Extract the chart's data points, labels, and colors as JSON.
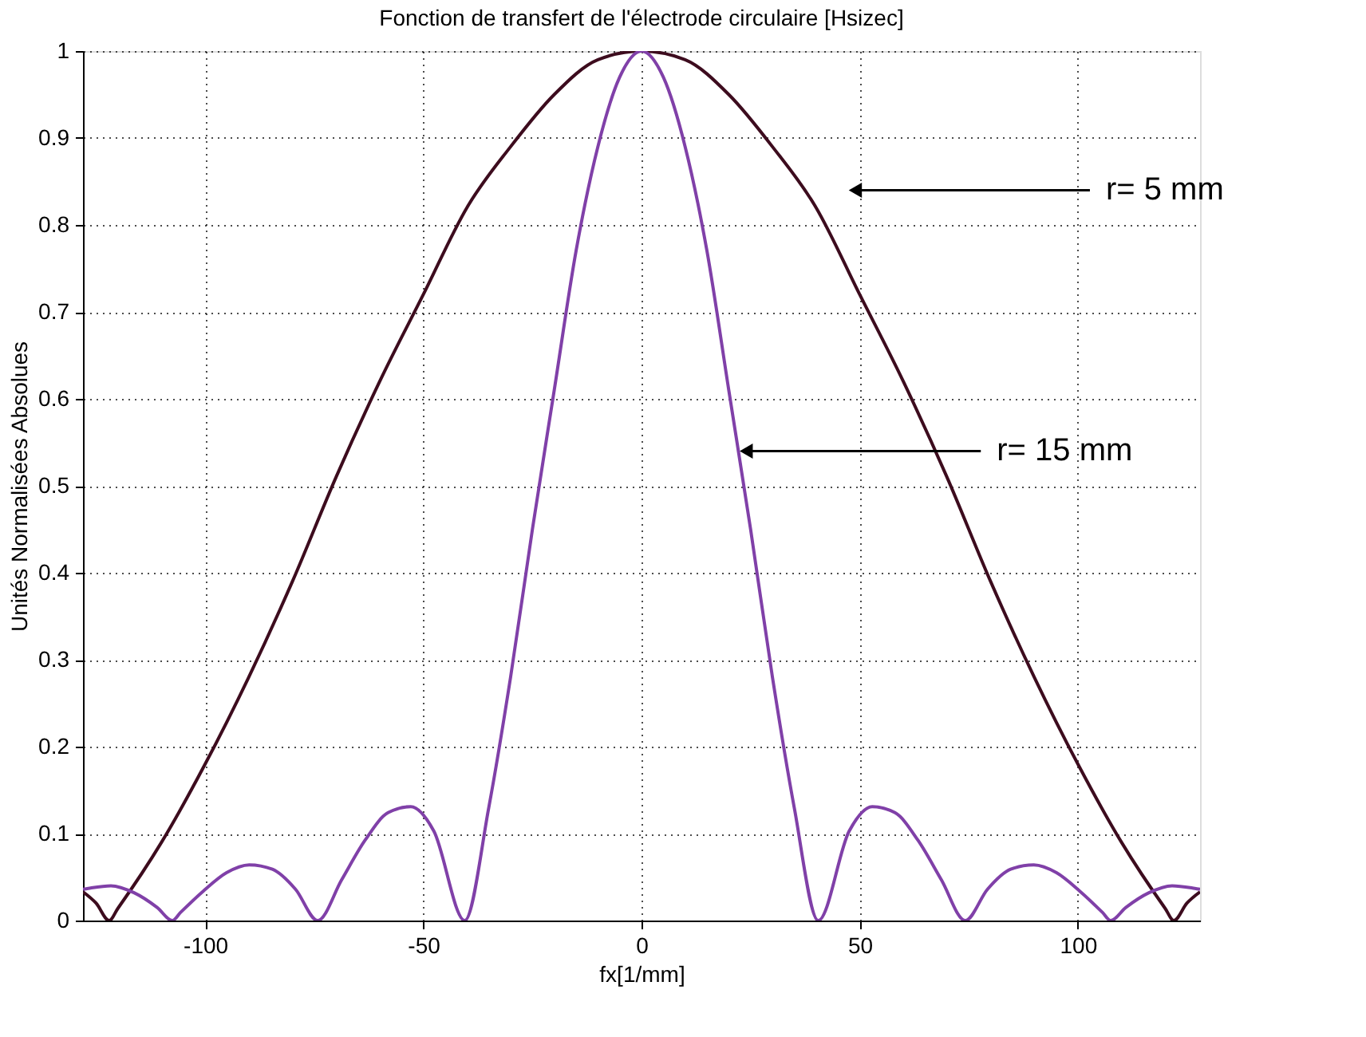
{
  "chart_data": {
    "type": "line",
    "title": "Fonction de transfert de l'électrode circulaire [Hsizec]",
    "xlabel": "fx[1/mm]",
    "ylabel": "Unités Normalisées Absolues",
    "xlim": [
      -128,
      128
    ],
    "xticks": [
      -100,
      -50,
      0,
      50,
      100
    ],
    "ylim": [
      0,
      1
    ],
    "yticks": [
      0,
      0.1,
      0.2,
      0.3,
      0.4,
      0.5,
      0.6,
      0.7,
      0.8,
      0.9,
      1
    ],
    "grid": true,
    "marker": "none",
    "line_style": "solid",
    "series": [
      {
        "color": "#3d0c1e",
        "x": [
          -128,
          -125,
          -122,
          -120,
          -110,
          -100,
          -90,
          -80,
          -70,
          -60,
          -50,
          -40,
          -30,
          -20,
          -10,
          0,
          10,
          20,
          30,
          40,
          50,
          60,
          70,
          80,
          90,
          100,
          110,
          120,
          122,
          125,
          128
        ],
        "values": [
          0.033,
          0.02,
          0,
          0.014,
          0.09,
          0.18,
          0.28,
          0.39,
          0.51,
          0.62,
          0.72,
          0.82,
          0.89,
          0.95,
          0.99,
          1,
          0.99,
          0.95,
          0.89,
          0.82,
          0.72,
          0.62,
          0.51,
          0.39,
          0.28,
          0.18,
          0.09,
          0.014,
          0,
          0.02,
          0.033
        ]
      },
      {
        "color": "#8040a8",
        "x": [
          -128,
          -126.8,
          -121.6,
          -116.3,
          -111,
          -107.5,
          -105.7,
          -100.4,
          -95.1,
          -89.9,
          -84.6,
          -79.3,
          -74.2,
          -68.7,
          -63.4,
          -58.1,
          -52.9,
          -47.6,
          -40.5,
          -35,
          -30,
          -25,
          -20,
          -15,
          -10,
          -5,
          0,
          5,
          10,
          15,
          20,
          25,
          30,
          35,
          40.5,
          47.6,
          52.9,
          58.1,
          63.4,
          68.7,
          74.2,
          79.3,
          84.6,
          89.9,
          95.1,
          100.4,
          105.7,
          107.5,
          111,
          116.3,
          121.6,
          126.8,
          128
        ],
        "values": [
          0.036,
          0.037,
          0.04,
          0.032,
          0.015,
          0,
          0.009,
          0.034,
          0.055,
          0.064,
          0.059,
          0.036,
          0,
          0.047,
          0.092,
          0.124,
          0.131,
          0.103,
          0,
          0.13,
          0.28,
          0.45,
          0.61,
          0.77,
          0.89,
          0.97,
          1,
          0.97,
          0.89,
          0.77,
          0.61,
          0.45,
          0.28,
          0.13,
          0,
          0.103,
          0.131,
          0.124,
          0.092,
          0.047,
          0,
          0.036,
          0.059,
          0.064,
          0.055,
          0.034,
          0.009,
          0,
          0.015,
          0.032,
          0.04,
          0.037,
          0.036
        ]
      }
    ],
    "annotations": [
      {
        "text": "r= 5 mm",
        "x": 49,
        "y": 0.84
      },
      {
        "text": "r= 15 mm",
        "x": 24,
        "y": 0.54
      }
    ]
  }
}
